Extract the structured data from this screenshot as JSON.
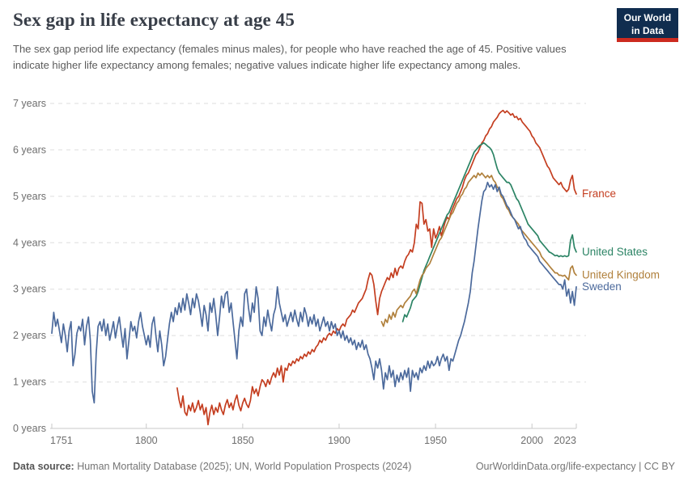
{
  "header": {
    "title": "Sex gap in life expectancy at age 45",
    "subtitle": "The sex gap period life expectancy (females minus males), for people who have reached the age of 45. Positive values indicate higher life expectancy among females; negative values indicate higher life expectancy among males.",
    "logo": {
      "line1": "Our World",
      "line2": "in Data",
      "bg_color": "#102d4f",
      "bar_color": "#cc2a1f"
    }
  },
  "footer": {
    "source_label": "Data source:",
    "source_text": " Human Mortality Database (2025); UN, World Population Prospects (2024)",
    "link_text": "OurWorldinData.org/life-expectancy | CC BY"
  },
  "chart_data": {
    "type": "line",
    "title": "Sex gap in life expectancy at age 45",
    "xlabel": "",
    "ylabel": "",
    "xlim": [
      1751,
      2023
    ],
    "ylim": [
      0,
      7
    ],
    "x_ticks": [
      1751,
      1800,
      1850,
      1900,
      1950,
      2000,
      2023
    ],
    "y_ticks": [
      0,
      1,
      2,
      3,
      4,
      5,
      6,
      7
    ],
    "y_tick_suffix": " years",
    "grid": "horizontal-dashed",
    "legend_position": "end-of-line",
    "series": [
      {
        "id": "france",
        "name": "France",
        "color": "#c43e20",
        "start": 1816,
        "values": [
          0.87,
          0.62,
          0.45,
          0.7,
          0.35,
          0.28,
          0.5,
          0.38,
          0.55,
          0.35,
          0.45,
          0.6,
          0.4,
          0.52,
          0.3,
          0.45,
          0.08,
          0.35,
          0.5,
          0.3,
          0.45,
          0.35,
          0.55,
          0.4,
          0.3,
          0.5,
          0.62,
          0.45,
          0.55,
          0.4,
          0.6,
          0.72,
          0.5,
          0.38,
          0.55,
          0.65,
          0.52,
          0.45,
          0.6,
          0.9,
          0.75,
          0.85,
          0.7,
          0.9,
          1.05,
          1.0,
          0.9,
          1.05,
          0.95,
          1.1,
          1.2,
          1.1,
          1.3,
          1.15,
          1.35,
          1.0,
          1.3,
          1.25,
          1.4,
          1.35,
          1.45,
          1.4,
          1.5,
          1.45,
          1.55,
          1.5,
          1.6,
          1.55,
          1.65,
          1.6,
          1.7,
          1.65,
          1.75,
          1.8,
          1.9,
          1.85,
          1.95,
          1.9,
          2.0,
          2.05,
          2.0,
          2.1,
          2.05,
          2.15,
          2.1,
          2.2,
          2.25,
          2.2,
          2.35,
          2.4,
          2.45,
          2.55,
          2.5,
          2.6,
          2.7,
          2.75,
          2.8,
          2.9,
          3.0,
          3.2,
          3.35,
          3.3,
          3.1,
          2.75,
          2.45,
          2.8,
          2.95,
          3.05,
          3.15,
          3.25,
          3.2,
          3.35,
          3.25,
          3.45,
          3.3,
          3.45,
          3.5,
          3.45,
          3.6,
          3.7,
          3.75,
          3.85,
          3.8,
          4.0,
          4.4,
          4.3,
          4.88,
          4.85,
          4.4,
          4.5,
          4.25,
          4.3,
          3.9,
          4.3,
          4.1,
          4.2,
          4.35,
          4.15,
          4.3,
          4.45,
          4.55,
          4.5,
          4.65,
          4.75,
          4.85,
          4.95,
          5.0,
          5.1,
          5.2,
          5.35,
          5.45,
          5.5,
          5.6,
          5.7,
          5.8,
          5.9,
          5.95,
          6.05,
          6.15,
          6.2,
          6.3,
          6.35,
          6.45,
          6.5,
          6.6,
          6.65,
          6.7,
          6.78,
          6.82,
          6.85,
          6.8,
          6.84,
          6.8,
          6.75,
          6.78,
          6.7,
          6.72,
          6.65,
          6.68,
          6.6,
          6.55,
          6.5,
          6.45,
          6.4,
          6.3,
          6.25,
          6.15,
          6.1,
          6.05,
          5.95,
          5.85,
          5.75,
          5.65,
          5.6,
          5.5,
          5.4,
          5.35,
          5.3,
          5.25,
          5.3,
          5.2,
          5.15,
          5.1,
          5.15,
          5.35,
          5.45,
          5.15,
          5.05
        ]
      },
      {
        "id": "united-states",
        "name": "United States",
        "color": "#2c8465",
        "start": 1933,
        "values": [
          2.3,
          2.45,
          2.4,
          2.5,
          2.6,
          2.75,
          2.8,
          2.85,
          2.95,
          3.1,
          3.25,
          3.4,
          3.5,
          3.6,
          3.7,
          3.8,
          3.9,
          4.0,
          4.1,
          4.2,
          4.3,
          4.4,
          4.5,
          4.6,
          4.65,
          4.75,
          4.85,
          4.95,
          5.05,
          5.15,
          5.25,
          5.35,
          5.45,
          5.55,
          5.65,
          5.75,
          5.85,
          5.95,
          6.0,
          6.05,
          6.1,
          6.12,
          6.15,
          6.12,
          6.08,
          6.05,
          6.0,
          5.9,
          5.75,
          5.6,
          5.5,
          5.45,
          5.4,
          5.35,
          5.3,
          5.3,
          5.25,
          5.15,
          5.05,
          4.95,
          4.9,
          4.8,
          4.7,
          4.6,
          4.5,
          4.4,
          4.35,
          4.3,
          4.25,
          4.2,
          4.15,
          4.05,
          4.0,
          3.95,
          3.9,
          3.85,
          3.8,
          3.78,
          3.75,
          3.72,
          3.73,
          3.7,
          3.72,
          3.7,
          3.72,
          3.7,
          3.72,
          4.05,
          4.17,
          3.9,
          3.8
        ]
      },
      {
        "id": "united-kingdom",
        "name": "United Kingdom",
        "color": "#b0803c",
        "start": 1922,
        "values": [
          2.3,
          2.2,
          2.35,
          2.28,
          2.45,
          2.35,
          2.5,
          2.4,
          2.55,
          2.6,
          2.65,
          2.6,
          2.7,
          2.75,
          2.8,
          2.85,
          2.95,
          3.0,
          2.9,
          3.05,
          3.2,
          3.3,
          3.35,
          3.45,
          3.5,
          3.55,
          3.65,
          3.75,
          3.85,
          3.95,
          4.05,
          4.1,
          4.2,
          4.3,
          4.4,
          4.5,
          4.6,
          4.65,
          4.75,
          4.85,
          4.9,
          5.0,
          5.05,
          5.15,
          5.2,
          5.3,
          5.35,
          5.4,
          5.45,
          5.4,
          5.5,
          5.45,
          5.5,
          5.45,
          5.4,
          5.45,
          5.4,
          5.45,
          5.35,
          5.3,
          5.2,
          5.15,
          5.0,
          4.95,
          4.85,
          4.75,
          4.7,
          4.6,
          4.55,
          4.5,
          4.45,
          4.4,
          4.3,
          4.25,
          4.2,
          4.15,
          4.1,
          4.05,
          4.0,
          3.95,
          3.9,
          3.85,
          3.8,
          3.7,
          3.65,
          3.6,
          3.55,
          3.5,
          3.45,
          3.4,
          3.35,
          3.35,
          3.3,
          3.3,
          3.28,
          3.3,
          3.25,
          3.2,
          3.45,
          3.5,
          3.35,
          3.3
        ]
      },
      {
        "id": "sweden",
        "name": "Sweden",
        "color": "#4c6a9c",
        "start": 1751,
        "values": [
          2.05,
          2.5,
          2.2,
          2.35,
          2.1,
          1.85,
          2.25,
          2.0,
          1.65,
          2.1,
          2.3,
          1.35,
          1.6,
          2.05,
          2.2,
          2.1,
          2.35,
          1.8,
          2.2,
          2.4,
          1.9,
          0.8,
          0.55,
          1.6,
          2.2,
          2.3,
          2.1,
          2.35,
          2.0,
          2.25,
          1.9,
          2.1,
          2.3,
          1.95,
          2.2,
          2.4,
          2.05,
          1.75,
          2.15,
          1.5,
          1.9,
          2.3,
          2.1,
          2.2,
          1.95,
          2.3,
          2.5,
          2.2,
          2.0,
          1.8,
          2.0,
          1.75,
          2.25,
          2.4,
          2.0,
          1.65,
          2.1,
          1.8,
          1.35,
          1.55,
          1.9,
          2.25,
          2.5,
          2.3,
          2.6,
          2.45,
          2.7,
          2.5,
          2.8,
          2.55,
          2.9,
          2.7,
          2.45,
          2.8,
          2.6,
          2.9,
          2.75,
          2.5,
          2.2,
          2.65,
          2.45,
          2.1,
          2.7,
          2.5,
          2.8,
          2.45,
          2.0,
          2.4,
          2.85,
          2.6,
          2.9,
          2.95,
          2.5,
          2.7,
          2.3,
          1.9,
          1.5,
          2.1,
          2.4,
          2.2,
          2.9,
          3.0,
          2.6,
          2.3,
          2.7,
          2.5,
          3.05,
          2.8,
          2.1,
          2.0,
          2.4,
          2.2,
          2.55,
          2.3,
          2.1,
          2.45,
          2.6,
          3.05,
          2.7,
          2.5,
          2.3,
          2.45,
          2.2,
          2.35,
          2.5,
          2.3,
          2.55,
          2.35,
          2.2,
          2.5,
          2.3,
          2.6,
          2.45,
          2.2,
          2.4,
          2.25,
          2.45,
          2.2,
          2.35,
          2.1,
          2.25,
          2.4,
          2.2,
          2.3,
          2.1,
          2.3,
          2.15,
          2.25,
          2.0,
          2.1,
          1.95,
          2.1,
          1.9,
          2.0,
          1.85,
          1.95,
          1.8,
          1.9,
          1.7,
          1.85,
          1.75,
          1.9,
          1.7,
          1.8,
          1.6,
          1.5,
          1.3,
          1.05,
          1.45,
          1.3,
          1.5,
          1.25,
          0.85,
          1.2,
          1.05,
          1.35,
          1.1,
          1.25,
          0.9,
          1.15,
          1.0,
          1.2,
          1.05,
          1.25,
          1.1,
          1.3,
          0.8,
          1.25,
          1.1,
          1.2,
          1.05,
          1.3,
          1.2,
          1.35,
          1.25,
          1.45,
          1.3,
          1.45,
          1.35,
          1.4,
          1.55,
          1.35,
          1.5,
          1.6,
          1.45,
          1.55,
          1.25,
          1.5,
          1.45,
          1.6,
          1.75,
          1.9,
          2.0,
          2.15,
          2.3,
          2.5,
          2.7,
          2.95,
          3.35,
          3.6,
          3.95,
          4.3,
          4.6,
          4.9,
          5.1,
          5.15,
          5.3,
          5.2,
          5.25,
          5.15,
          5.25,
          5.1,
          5.2,
          5.05,
          5.0,
          4.9,
          4.8,
          4.75,
          4.65,
          4.55,
          4.5,
          4.4,
          4.3,
          4.35,
          4.2,
          4.1,
          4.05,
          3.95,
          3.9,
          3.85,
          3.8,
          3.75,
          3.7,
          3.6,
          3.55,
          3.5,
          3.45,
          3.4,
          3.35,
          3.3,
          3.25,
          3.2,
          3.15,
          3.1,
          3.1,
          3.0,
          3.2,
          2.85,
          3.0,
          2.7,
          2.95,
          2.65,
          3.05
        ]
      }
    ],
    "style": {
      "grid_color": "#dedede",
      "axis_color": "#c9c9c9",
      "tick_label_color": "#6e6e6e"
    }
  }
}
